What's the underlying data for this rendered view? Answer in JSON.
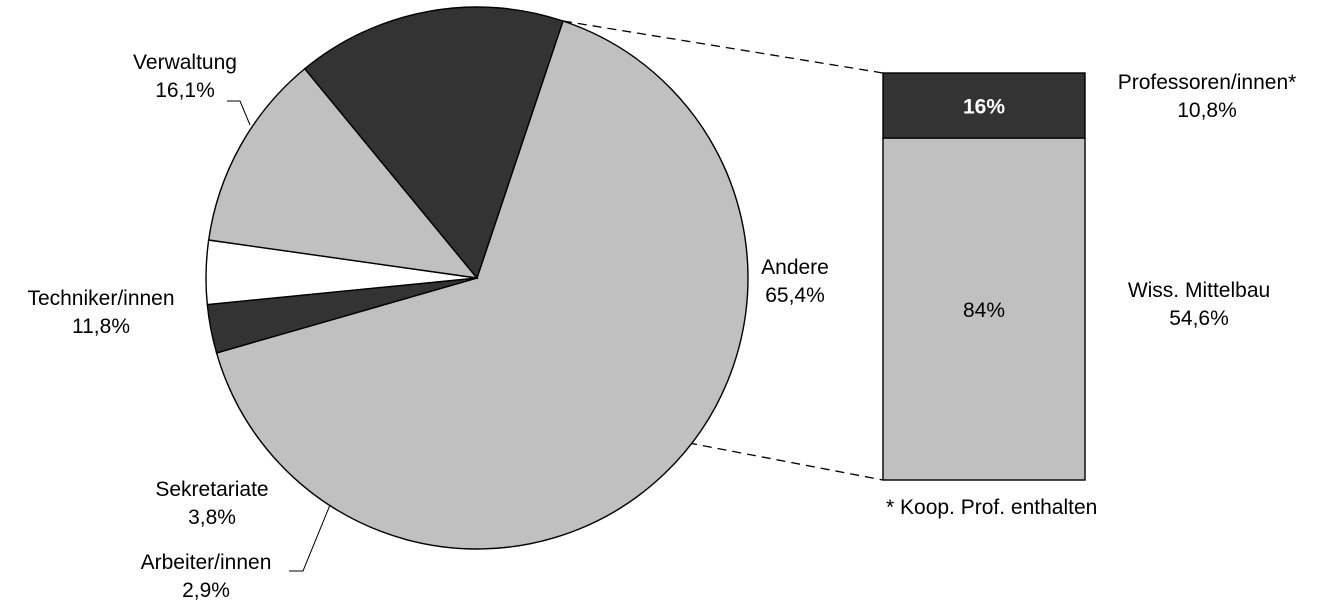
{
  "chart_data": {
    "type": "bar-of-pie",
    "pie": {
      "slices": [
        {
          "label": "Andere",
          "pct_label": "65,4%",
          "value": 65.4,
          "color": "#c0c0c0"
        },
        {
          "label": "Arbeiter/innen",
          "pct_label": "2,9%",
          "value": 2.9,
          "color": "#333333"
        },
        {
          "label": "Sekretariate",
          "pct_label": "3,8%",
          "value": 3.8,
          "color": "#ffffff"
        },
        {
          "label": "Techniker/innen",
          "pct_label": "11,8%",
          "value": 11.8,
          "color": "#c0c0c0"
        },
        {
          "label": "Verwaltung",
          "pct_label": "16,1%",
          "value": 16.1,
          "color": "#333333"
        }
      ]
    },
    "bar": {
      "segments": [
        {
          "label": "Professoren/innen*",
          "pct_label": "10,8%",
          "value": 10.8,
          "share": 16,
          "share_label": "16%",
          "color": "#333333",
          "share_text_color": "#ffffff"
        },
        {
          "label": "Wiss. Mittelbau",
          "pct_label": "54,6%",
          "value": 54.6,
          "share": 84,
          "share_label": "84%",
          "color": "#c0c0c0",
          "share_text_color": "#000000"
        }
      ],
      "footnote": "* Koop. Prof. enthalten"
    }
  }
}
